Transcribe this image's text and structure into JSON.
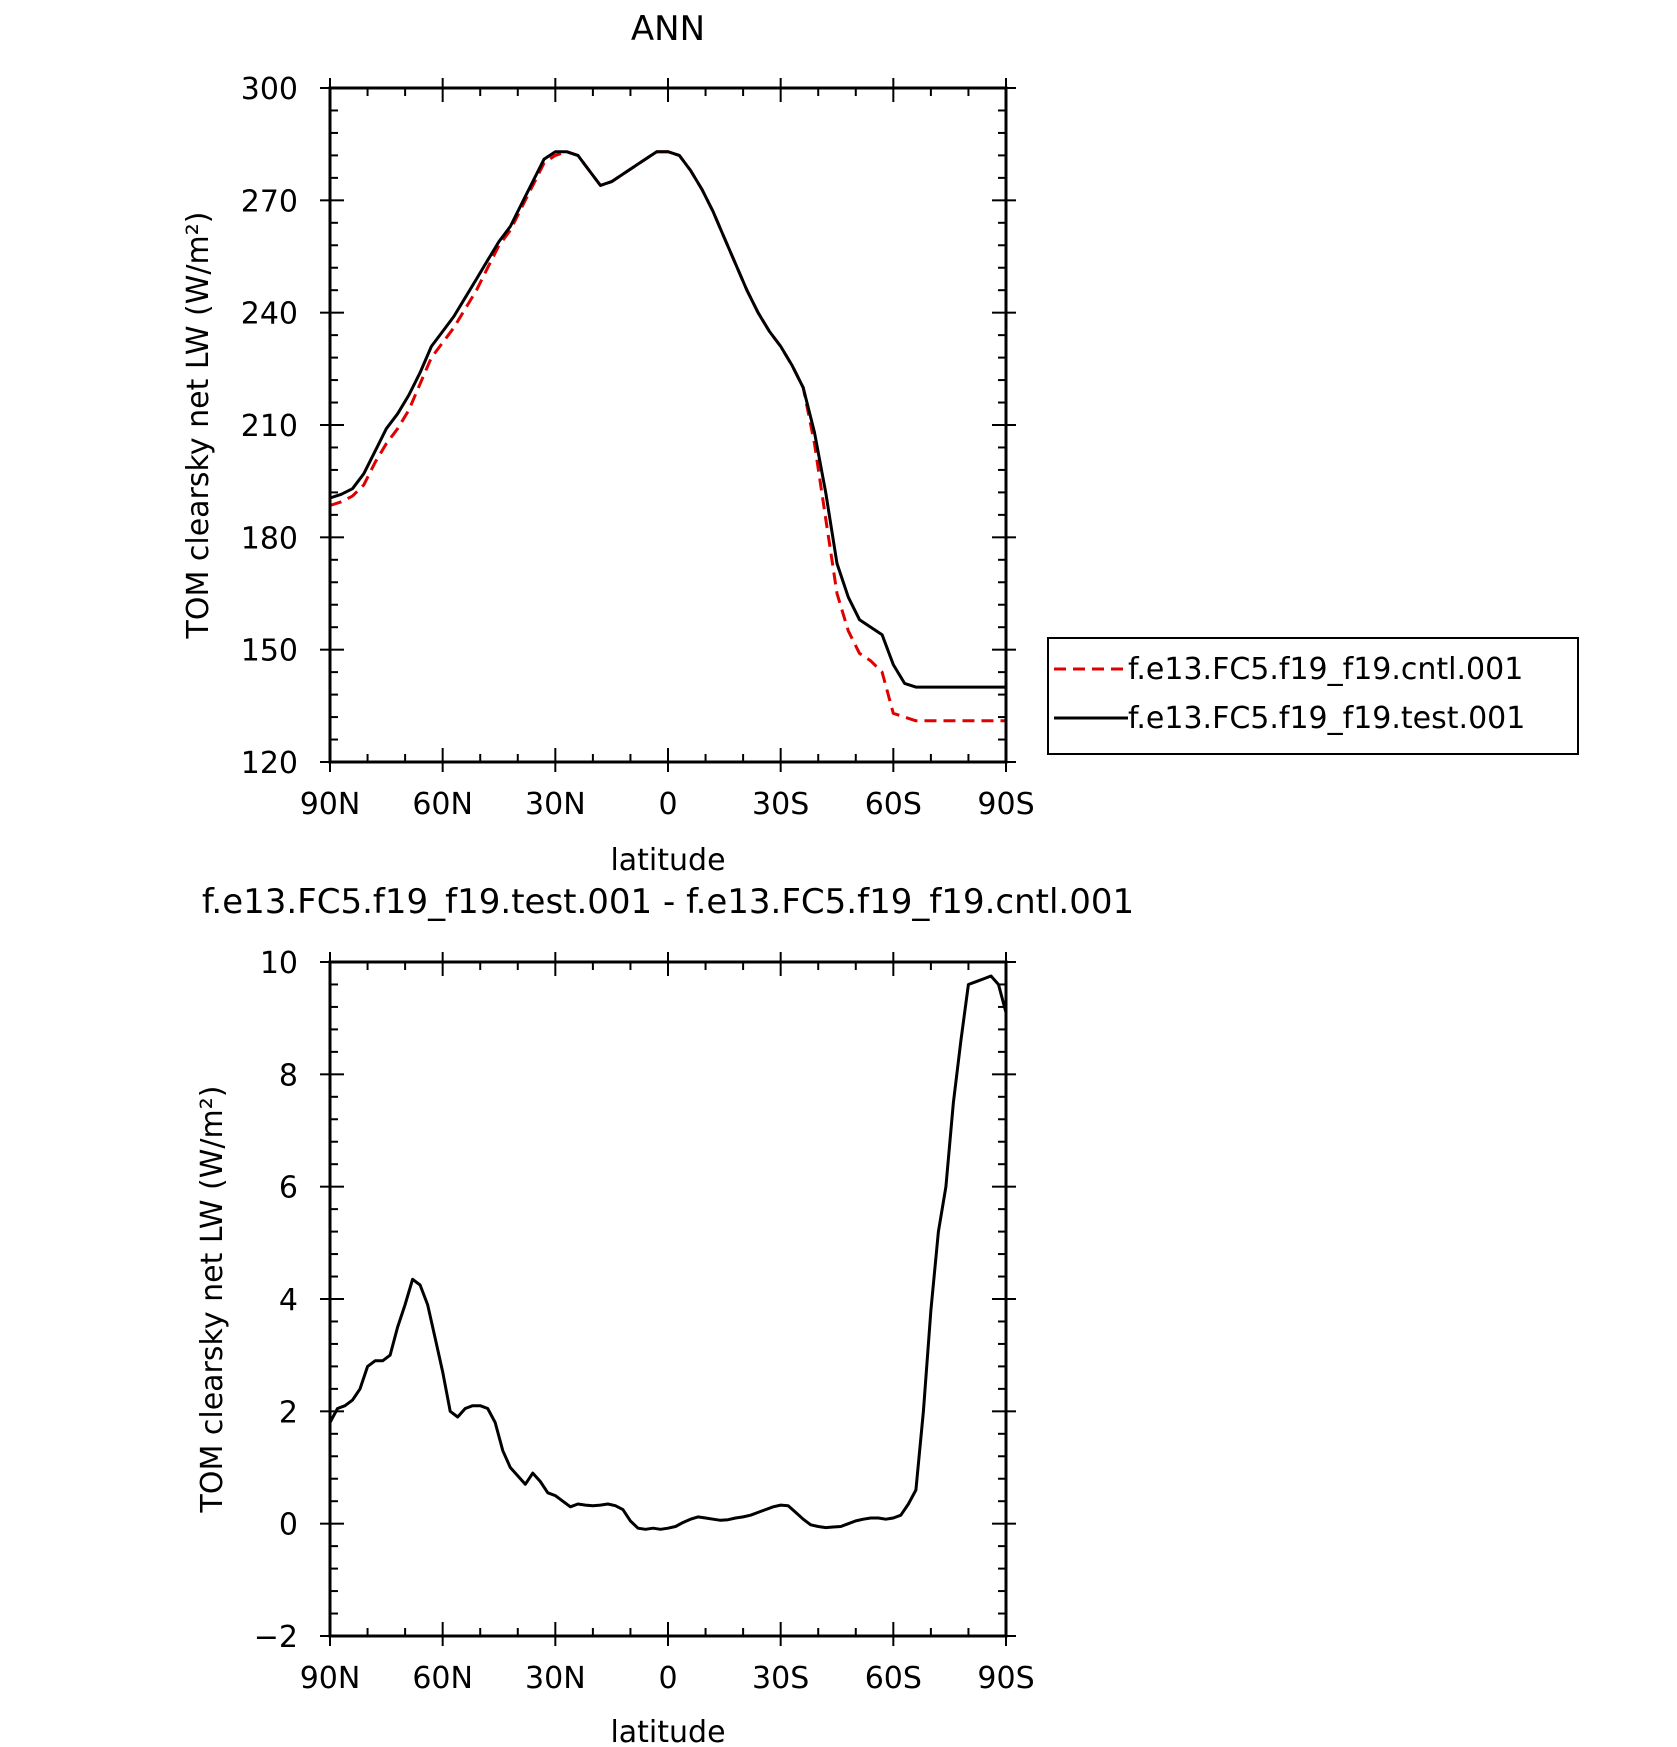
{
  "chart_data": [
    {
      "type": "line",
      "title": "ANN",
      "xlabel": "latitude",
      "ylabel": "TOM clearsky net LW (W/m²)",
      "xlim": [
        90,
        -90
      ],
      "ylim": [
        120,
        300
      ],
      "grid": false,
      "x_ticks": [
        {
          "value": 90,
          "label": "90N"
        },
        {
          "value": 60,
          "label": "60N"
        },
        {
          "value": 30,
          "label": "30N"
        },
        {
          "value": 0,
          "label": "0"
        },
        {
          "value": -30,
          "label": "30S"
        },
        {
          "value": -60,
          "label": "60S"
        },
        {
          "value": -90,
          "label": "90S"
        }
      ],
      "y_ticks": [
        {
          "value": 120,
          "label": "120"
        },
        {
          "value": 150,
          "label": "150"
        },
        {
          "value": 180,
          "label": "180"
        },
        {
          "value": 210,
          "label": "210"
        },
        {
          "value": 240,
          "label": "240"
        },
        {
          "value": 270,
          "label": "270"
        },
        {
          "value": 300,
          "label": "300"
        }
      ],
      "legend": {
        "placement": "right"
      },
      "x": [
        90,
        87,
        84,
        81,
        78,
        75,
        72,
        69,
        66,
        63,
        60,
        57,
        54,
        51,
        48,
        45,
        42,
        39,
        36,
        33,
        30,
        27,
        24,
        21,
        18,
        15,
        12,
        9,
        6,
        3,
        0,
        -3,
        -6,
        -9,
        -12,
        -15,
        -18,
        -21,
        -24,
        -27,
        -30,
        -33,
        -36,
        -39,
        -42,
        -45,
        -48,
        -51,
        -54,
        -57,
        -60,
        -63,
        -66,
        -69,
        -72,
        -75,
        -78,
        -81,
        -84,
        -87,
        -90
      ],
      "series": [
        {
          "name": "f.e13.FC5.f19_f19.cntl.001",
          "color": "#e00000",
          "dash": true,
          "values": [
            188.5,
            189.5,
            191,
            194,
            200,
            205,
            209,
            214,
            221,
            228,
            232,
            236,
            241,
            246,
            252,
            258,
            262,
            268,
            274,
            280,
            282,
            283,
            282,
            278,
            274,
            275,
            277,
            279,
            281,
            283,
            283,
            282,
            278,
            273,
            267,
            260,
            253,
            246,
            240,
            235,
            231,
            226,
            220,
            205,
            185,
            165,
            155,
            149,
            147,
            144,
            133,
            132,
            131,
            131,
            131,
            131,
            131,
            131,
            131,
            131,
            131
          ]
        },
        {
          "name": "f.e13.FC5.f19_f19.test.001",
          "color": "#000000",
          "dash": false,
          "values": [
            190.5,
            191.5,
            193,
            197,
            203,
            209,
            213,
            218,
            224,
            231,
            235,
            239,
            244,
            249,
            254,
            259,
            263,
            269,
            275,
            281,
            283,
            283,
            282,
            278,
            274,
            275,
            277,
            279,
            281,
            283,
            283,
            282,
            278,
            273,
            267,
            260,
            253,
            246,
            240,
            235,
            231,
            226,
            220,
            208,
            192,
            173,
            164,
            158,
            156,
            154,
            146,
            141,
            140,
            140,
            140,
            140,
            140,
            140,
            140,
            140,
            140
          ]
        }
      ]
    },
    {
      "type": "line",
      "title": "f.e13.FC5.f19_f19.test.001 - f.e13.FC5.f19_f19.cntl.001",
      "xlabel": "latitude",
      "ylabel": "TOM clearsky net LW (W/m²)",
      "xlim": [
        90,
        -90
      ],
      "ylim": [
        -2,
        10
      ],
      "grid": false,
      "x_ticks": [
        {
          "value": 90,
          "label": "90N"
        },
        {
          "value": 60,
          "label": "60N"
        },
        {
          "value": 30,
          "label": "30N"
        },
        {
          "value": 0,
          "label": "0"
        },
        {
          "value": -30,
          "label": "30S"
        },
        {
          "value": -60,
          "label": "60S"
        },
        {
          "value": -90,
          "label": "90S"
        }
      ],
      "y_ticks": [
        {
          "value": -2,
          "label": "−2"
        },
        {
          "value": 0,
          "label": "0"
        },
        {
          "value": 2,
          "label": "2"
        },
        {
          "value": 4,
          "label": "4"
        },
        {
          "value": 6,
          "label": "6"
        },
        {
          "value": 8,
          "label": "8"
        },
        {
          "value": 10,
          "label": "10"
        }
      ],
      "x": [
        90,
        88,
        86,
        84,
        82,
        80,
        78,
        76,
        74,
        72,
        70,
        68,
        66,
        64,
        62,
        60,
        58,
        56,
        54,
        52,
        50,
        48,
        46,
        44,
        42,
        40,
        38,
        36,
        34,
        32,
        30,
        28,
        26,
        24,
        22,
        20,
        18,
        16,
        14,
        12,
        10,
        8,
        6,
        4,
        2,
        0,
        -2,
        -4,
        -6,
        -8,
        -10,
        -12,
        -14,
        -16,
        -18,
        -20,
        -22,
        -24,
        -26,
        -28,
        -30,
        -32,
        -34,
        -36,
        -38,
        -40,
        -42,
        -44,
        -46,
        -48,
        -50,
        -52,
        -54,
        -56,
        -58,
        -60,
        -62,
        -64,
        -66,
        -68,
        -70,
        -72,
        -74,
        -76,
        -78,
        -80,
        -82,
        -84,
        -86,
        -88,
        -90
      ],
      "series": [
        {
          "color": "#000000",
          "dash": false,
          "values": [
            1.8,
            2.05,
            2.1,
            2.2,
            2.4,
            2.8,
            2.9,
            2.9,
            3.0,
            3.5,
            3.9,
            4.35,
            4.25,
            3.9,
            3.3,
            2.7,
            2.0,
            1.9,
            2.05,
            2.1,
            2.1,
            2.05,
            1.8,
            1.3,
            1.0,
            0.85,
            0.7,
            0.9,
            0.75,
            0.55,
            0.5,
            0.4,
            0.3,
            0.35,
            0.33,
            0.32,
            0.33,
            0.35,
            0.32,
            0.25,
            0.05,
            -0.08,
            -0.1,
            -0.08,
            -0.1,
            -0.08,
            -0.05,
            0.02,
            0.08,
            0.12,
            0.1,
            0.08,
            0.06,
            0.07,
            0.1,
            0.12,
            0.15,
            0.2,
            0.25,
            0.3,
            0.33,
            0.32,
            0.2,
            0.08,
            -0.02,
            -0.05,
            -0.07,
            -0.06,
            -0.05,
            0.0,
            0.05,
            0.08,
            0.1,
            0.1,
            0.08,
            0.1,
            0.15,
            0.35,
            0.6,
            2.0,
            3.8,
            5.2,
            6.0,
            7.5,
            8.6,
            9.6,
            9.65,
            9.7,
            9.75,
            9.6,
            9.1
          ]
        }
      ]
    }
  ]
}
